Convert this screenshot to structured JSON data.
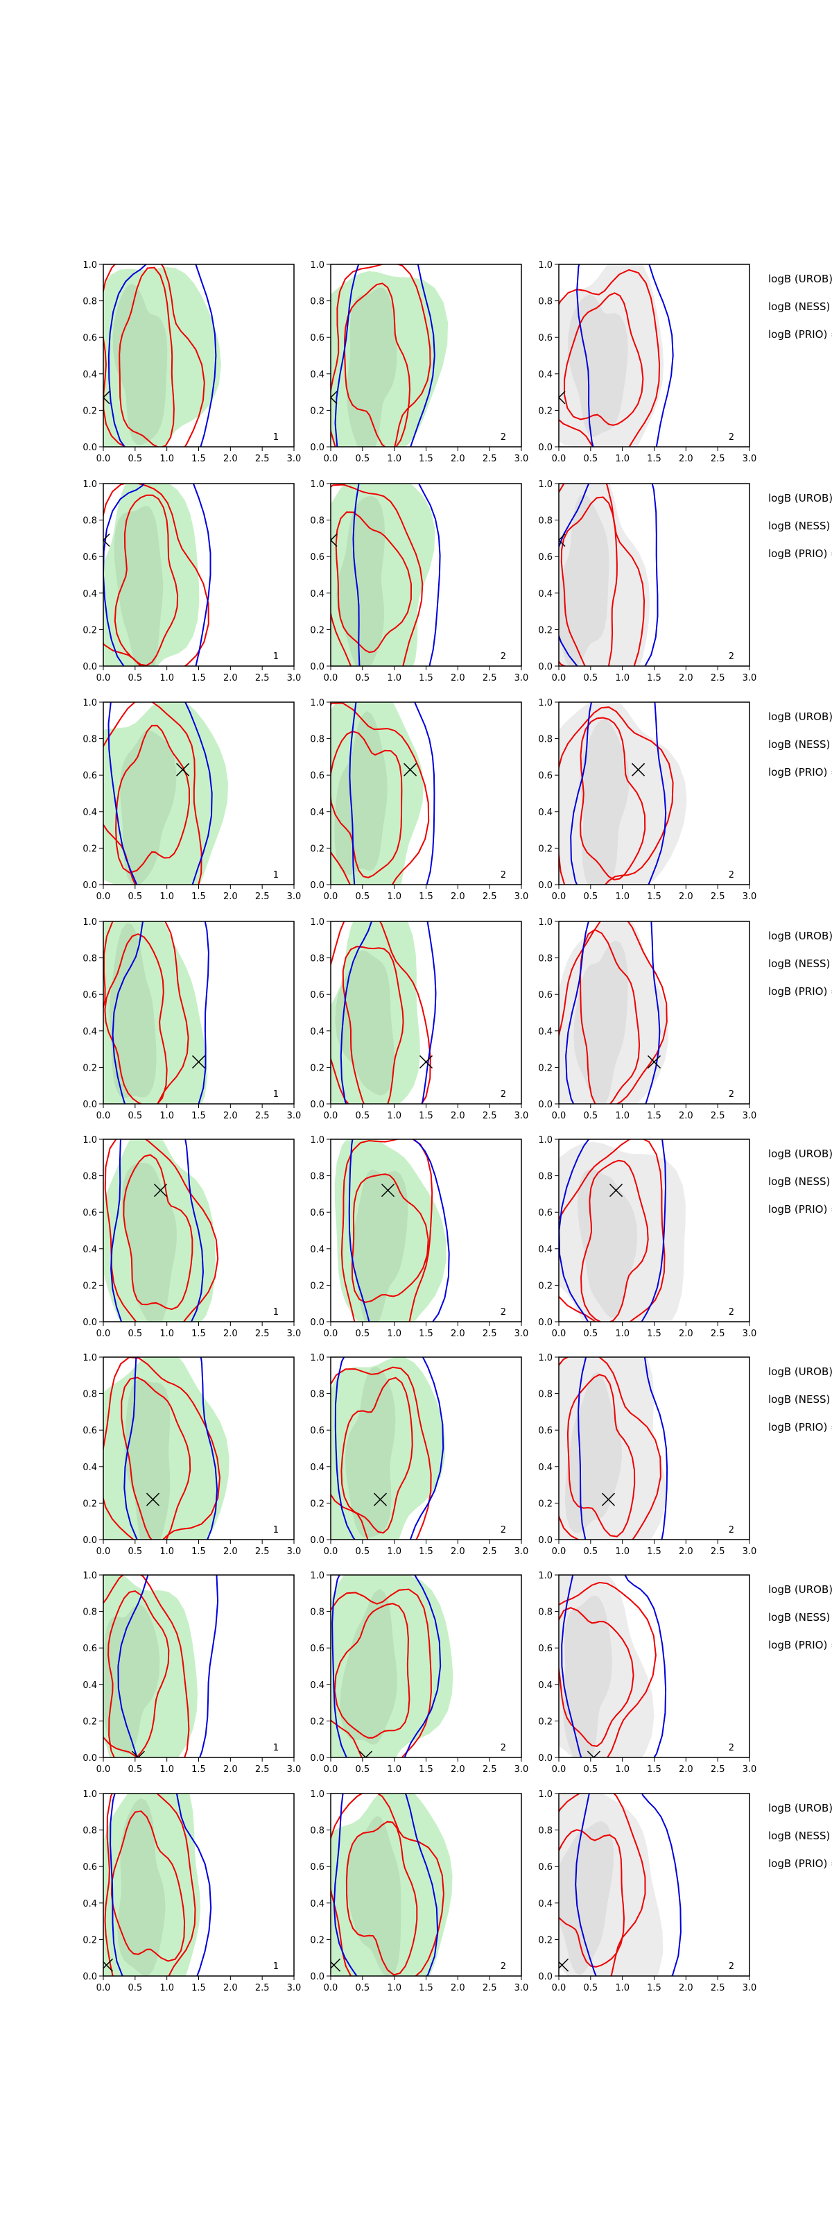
{
  "figure": {
    "xlim": [
      0,
      3
    ],
    "ylim": [
      0,
      1
    ],
    "xticks": [
      {
        "value": 0,
        "label": "0.0"
      },
      {
        "value": 0.5,
        "label": "0.5"
      },
      {
        "value": 1,
        "label": "1.0"
      },
      {
        "value": 1.5,
        "label": "1.5"
      },
      {
        "value": 2,
        "label": "2.0"
      },
      {
        "value": 2.5,
        "label": "2.5"
      },
      {
        "value": 3,
        "label": "3.0"
      }
    ],
    "yticks": [
      {
        "value": 0,
        "label": "0.0"
      },
      {
        "value": 0.2,
        "label": "0.2"
      },
      {
        "value": 0.4,
        "label": "0.4"
      },
      {
        "value": 0.6,
        "label": "0.6"
      },
      {
        "value": 0.8,
        "label": "0.8"
      },
      {
        "value": 1,
        "label": "1.0"
      }
    ],
    "panel_labels": [
      "1",
      "2",
      "2"
    ],
    "side_labels": [
      "logB (UROB) =",
      "logB (NESS) =",
      "logB (PRIO) ="
    ],
    "rows": [
      {
        "marker": {
          "x": 0,
          "y": 0.27
        }
      },
      {
        "marker": {
          "x": 0,
          "y": 0.69
        }
      },
      {
        "marker": {
          "x": 1.25,
          "y": 0.63
        }
      },
      {
        "marker": {
          "x": 1.5,
          "y": 0.23
        }
      },
      {
        "marker": {
          "x": 0.9,
          "y": 0.72
        }
      },
      {
        "marker": {
          "x": 0.78,
          "y": 0.22
        }
      },
      {
        "marker": {
          "x": 0.55,
          "y": 0
        }
      },
      {
        "marker": {
          "x": 0.05,
          "y": 0.06
        }
      }
    ]
  }
}
